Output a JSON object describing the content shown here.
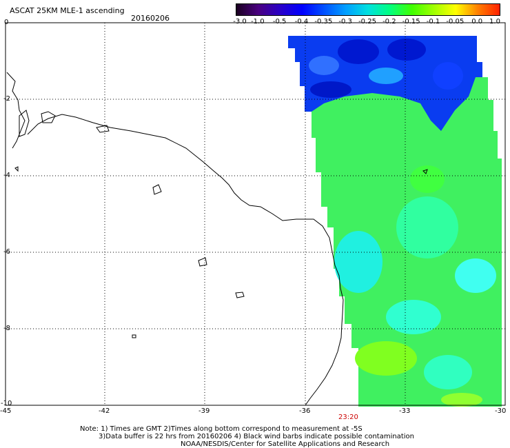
{
  "header": {
    "title": "ASCAT 25KM MLE-1 ascending",
    "date": "20160206"
  },
  "colorbar": {
    "labels": [
      "-3.0",
      "-1.0",
      "-0.5",
      "-0.4",
      "-0.35",
      "-0.3",
      "-0.25",
      "-0.2",
      "-0.15",
      "-0.1",
      "-0.05",
      "0.0",
      "1.0"
    ],
    "colors": [
      "#1a0020",
      "#4a0080",
      "#2a00c8",
      "#0000ff",
      "#0050ff",
      "#00a0ff",
      "#00e0e0",
      "#00ff80",
      "#40ff00",
      "#a0ff00",
      "#ffff00",
      "#ff8000",
      "#ff2000"
    ]
  },
  "axes": {
    "x_ticks": [
      "-45",
      "-42",
      "-39",
      "-36",
      "-33",
      "-30"
    ],
    "y_ticks": [
      "0",
      "-2",
      "-4",
      "-6",
      "-8",
      "-10"
    ]
  },
  "time_label": "23:20",
  "notes": [
    "Note: 1) Times are GMT 2)Times along bottom correspond to measurement at -5S",
    "3)Data buffer is 22 hrs from 20160206 4) Black wind barbs indicate possible contamination",
    "NOAA/NESDIS/Center for Satellite Applications and Research"
  ]
}
